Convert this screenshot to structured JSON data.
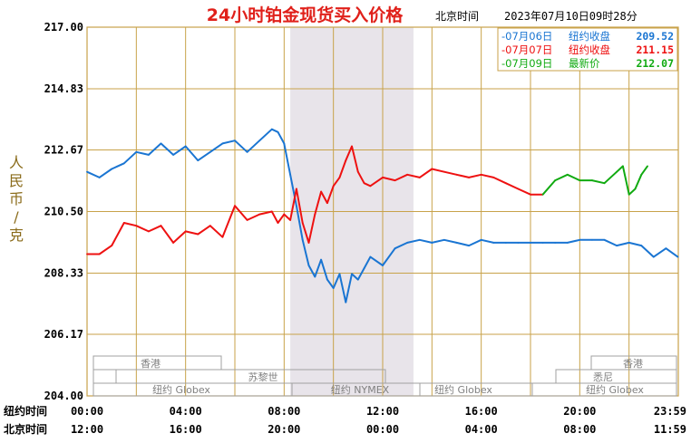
{
  "title": "24小时铂金现货买入价格",
  "timezone_label": "北京时间",
  "timestamp": "2023年07月10日09时28分",
  "y_axis_label": "人民币/克",
  "legend": [
    {
      "date": "-07月06日",
      "label": "纽约收盘",
      "value": "209.52",
      "color": "#1a75d2"
    },
    {
      "date": "-07月07日",
      "label": "纽约收盘",
      "value": "211.15",
      "color": "#ee1111"
    },
    {
      "date": "-07月09日",
      "label": "最新价",
      "value": "212.07",
      "color": "#11aa11"
    }
  ],
  "row_labels": {
    "ny": "纽约时间",
    "bj": "北京时间"
  },
  "ny_ticks": [
    "00:00",
    "04:00",
    "08:00",
    "12:00",
    "16:00",
    "20:00",
    "23:59"
  ],
  "bj_ticks": [
    "12:00",
    "16:00",
    "20:00",
    "00:00",
    "04:00",
    "08:00",
    "11:59"
  ],
  "sessions": {
    "top_left": "香港",
    "top_right": "香港",
    "mid_left": "苏黎世",
    "mid_right": "悉尼",
    "bottom": [
      "纽约 Globex",
      "纽约 NYMEX",
      "纽约 Globex",
      "纽约 Globex"
    ]
  },
  "colors": {
    "grid": "#c8a24a",
    "axis_text": "#000000",
    "title": "#e0201a",
    "shade": "#e8e4ea"
  },
  "chart_data": {
    "type": "line",
    "title": "24小时铂金现货买入价格",
    "xlabel": "纽约时间",
    "ylabel": "人民币/克",
    "ylim": [
      204.0,
      217.0
    ],
    "y_ticks": [
      217.0,
      214.83,
      212.67,
      210.5,
      208.33,
      206.17,
      204.0
    ],
    "x_unit": "hours since 00:00 New York time",
    "x_range": [
      0,
      24
    ],
    "series": [
      {
        "name": "07月06日",
        "color": "#1a75d2",
        "x": [
          0,
          0.5,
          1,
          1.5,
          2,
          2.5,
          3,
          3.5,
          4,
          4.5,
          5,
          5.5,
          6,
          6.5,
          7,
          7.5,
          7.75,
          8,
          8.25,
          8.5,
          8.75,
          9,
          9.25,
          9.5,
          9.75,
          10,
          10.25,
          10.5,
          10.75,
          11,
          11.25,
          11.5,
          12,
          12.5,
          13,
          13.5,
          14,
          14.5,
          15,
          15.5,
          16,
          16.5,
          17,
          17.5,
          18,
          18.5,
          19,
          19.5,
          20,
          20.5,
          21,
          21.5,
          22,
          22.5,
          23,
          23.5,
          23.98
        ],
        "values": [
          211.9,
          211.7,
          212.0,
          212.2,
          212.6,
          212.5,
          212.9,
          212.5,
          212.8,
          212.3,
          212.6,
          212.9,
          213.0,
          212.6,
          213.0,
          213.4,
          213.3,
          212.9,
          211.8,
          210.7,
          209.5,
          208.6,
          208.2,
          208.8,
          208.1,
          207.8,
          208.3,
          207.3,
          208.3,
          208.1,
          208.5,
          208.9,
          208.6,
          209.2,
          209.4,
          209.5,
          209.4,
          209.5,
          209.4,
          209.3,
          209.5,
          209.4,
          209.4,
          209.4,
          209.4,
          209.4,
          209.4,
          209.4,
          209.5,
          209.5,
          209.5,
          209.3,
          209.4,
          209.3,
          208.9,
          209.2,
          208.9
        ]
      },
      {
        "name": "07月07日",
        "color": "#ee1111",
        "x": [
          0,
          0.5,
          1,
          1.5,
          2,
          2.5,
          3,
          3.5,
          4,
          4.5,
          5,
          5.5,
          6,
          6.5,
          7,
          7.5,
          7.75,
          8,
          8.25,
          8.5,
          8.75,
          9,
          9.25,
          9.5,
          9.75,
          10,
          10.25,
          10.5,
          10.75,
          11,
          11.25,
          11.5,
          12,
          12.5,
          13,
          13.5,
          14,
          14.5,
          15,
          15.5,
          16,
          16.5,
          17,
          17.5,
          18,
          18.5
        ],
        "values": [
          209.0,
          209.0,
          209.3,
          210.1,
          210.0,
          209.8,
          210.0,
          209.4,
          209.8,
          209.7,
          210.0,
          209.6,
          210.7,
          210.2,
          210.4,
          210.5,
          210.1,
          210.4,
          210.2,
          211.3,
          210.1,
          209.4,
          210.4,
          211.2,
          210.8,
          211.4,
          211.7,
          212.3,
          212.8,
          211.9,
          211.5,
          211.4,
          211.7,
          211.6,
          211.8,
          211.7,
          212.0,
          211.9,
          211.8,
          211.7,
          211.8,
          211.7,
          211.5,
          211.3,
          211.1,
          211.1
        ]
      },
      {
        "name": "07月09日",
        "color": "#11aa11",
        "x": [
          18.5,
          19,
          19.5,
          20,
          20.5,
          21,
          21.5,
          21.75,
          22,
          22.25,
          22.5,
          22.75
        ],
        "values": [
          211.1,
          211.6,
          211.8,
          211.6,
          211.6,
          211.5,
          211.9,
          212.1,
          211.1,
          211.3,
          211.8,
          212.1
        ]
      }
    ],
    "shaded_region_x": [
      8.25,
      13.25
    ],
    "grid": true,
    "legend_position": "top-right"
  }
}
